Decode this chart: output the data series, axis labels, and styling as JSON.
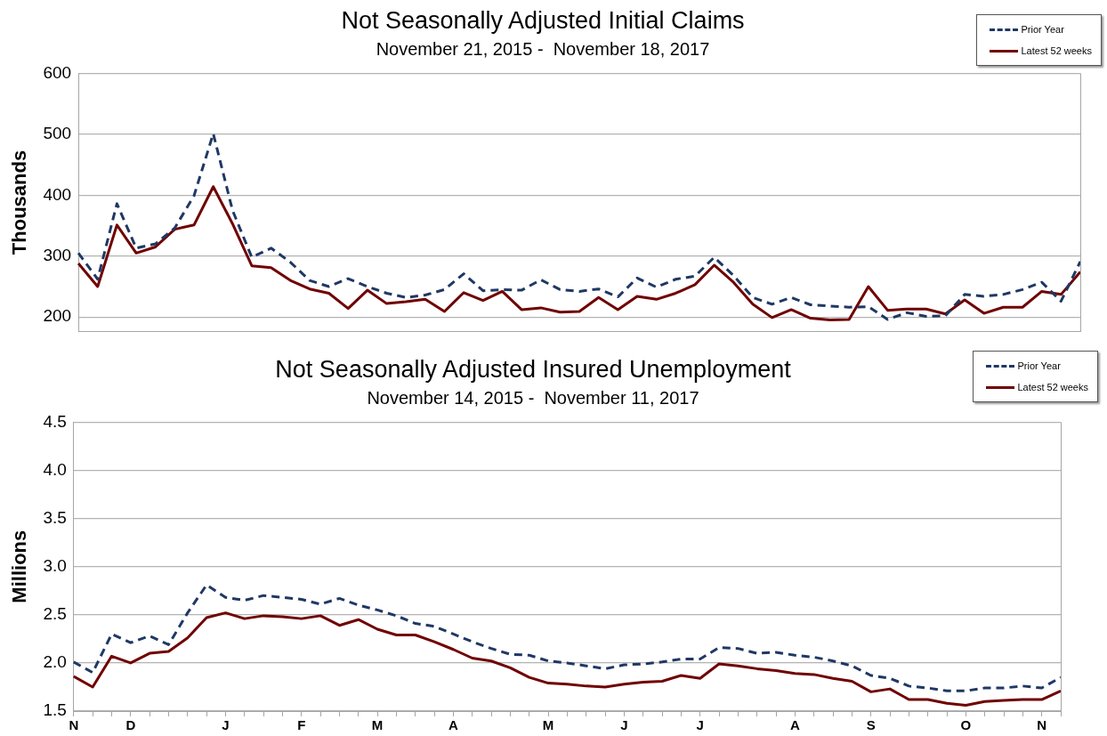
{
  "chart_data": [
    {
      "type": "line",
      "title": "Not Seasonally Adjusted Initial Claims",
      "subtitle": "November 21, 2015 -  November 18, 2017",
      "ylabel": "Thousands",
      "categories": [
        null,
        null,
        null,
        null,
        null,
        null,
        null,
        null,
        null,
        null,
        null,
        null,
        null,
        null,
        null,
        null,
        null,
        null,
        null,
        null,
        null,
        null,
        null,
        null,
        null,
        null,
        null,
        null,
        null,
        null,
        null,
        null,
        null,
        null,
        null,
        null,
        null,
        null,
        null,
        null,
        null,
        null,
        null,
        null,
        null,
        null,
        null,
        null,
        null,
        null,
        null,
        null,
        null
      ],
      "series": [
        {
          "name": "Prior Year",
          "color": "#1f3864",
          "line_style": "dashed",
          "values": [
            305,
            262,
            386,
            313,
            320,
            346,
            399,
            501,
            375,
            298,
            313,
            290,
            260,
            250,
            263,
            250,
            239,
            232,
            236,
            245,
            271,
            243,
            245,
            244,
            261,
            245,
            242,
            246,
            233,
            264,
            249,
            262,
            267,
            298,
            268,
            232,
            221,
            232,
            220,
            218,
            216,
            217,
            196,
            207,
            201,
            202,
            237,
            234,
            237,
            245,
            257,
            226,
            291
          ]
        },
        {
          "name": "Latest 52 weeks",
          "color": "#700000",
          "line_style": "solid",
          "values": [
            288,
            250,
            351,
            305,
            315,
            344,
            351,
            414,
            353,
            284,
            281,
            260,
            246,
            239,
            214,
            244,
            222,
            225,
            229,
            209,
            240,
            227,
            242,
            212,
            215,
            208,
            209,
            232,
            212,
            234,
            229,
            239,
            253,
            285,
            257,
            221,
            199,
            212,
            198,
            195,
            196,
            250,
            211,
            213,
            213,
            205,
            228,
            206,
            216,
            216,
            242,
            237,
            274
          ]
        }
      ],
      "ylim": [
        176,
        600
      ],
      "yticks": [
        200,
        300,
        400,
        500,
        600
      ],
      "grid": "y",
      "legend": "top right",
      "marker": "none",
      "tick_labels": "y"
    },
    {
      "type": "line",
      "title": "Not Seasonally Adjusted Insured Unemployment",
      "subtitle": "November 14, 2015 -  November 11, 2017",
      "ylabel": "Millions",
      "categories": [
        "N",
        null,
        null,
        "D",
        null,
        null,
        null,
        null,
        "J",
        null,
        null,
        null,
        "F",
        null,
        null,
        null,
        "M",
        null,
        null,
        null,
        "A",
        null,
        null,
        null,
        null,
        "M",
        null,
        null,
        null,
        "J",
        null,
        null,
        null,
        "J",
        null,
        null,
        null,
        null,
        "A",
        null,
        null,
        null,
        "S",
        null,
        null,
        null,
        null,
        "O",
        null,
        null,
        null,
        "N",
        null
      ],
      "series": [
        {
          "name": "Prior Year",
          "color": "#1f3864",
          "line_style": "dashed",
          "values": [
            2.01,
            1.9,
            2.3,
            2.21,
            2.28,
            2.19,
            2.52,
            2.81,
            2.68,
            2.65,
            2.7,
            2.68,
            2.66,
            2.61,
            2.67,
            2.6,
            2.55,
            2.49,
            2.41,
            2.38,
            2.3,
            2.22,
            2.15,
            2.09,
            2.08,
            2.02,
            2.0,
            1.97,
            1.94,
            1.98,
            1.99,
            2.01,
            2.04,
            2.04,
            2.16,
            2.15,
            2.1,
            2.11,
            2.08,
            2.06,
            2.02,
            1.97,
            1.87,
            1.84,
            1.76,
            1.74,
            1.71,
            1.71,
            1.74,
            1.74,
            1.76,
            1.74,
            1.85
          ]
        },
        {
          "name": "Latest 52 weeks",
          "color": "#700000",
          "line_style": "solid",
          "values": [
            1.86,
            1.75,
            2.07,
            2.0,
            2.1,
            2.12,
            2.26,
            2.47,
            2.52,
            2.46,
            2.49,
            2.48,
            2.46,
            2.49,
            2.39,
            2.45,
            2.35,
            2.29,
            2.29,
            2.22,
            2.14,
            2.05,
            2.02,
            1.95,
            1.85,
            1.79,
            1.78,
            1.76,
            1.75,
            1.78,
            1.8,
            1.81,
            1.87,
            1.84,
            1.99,
            1.97,
            1.94,
            1.92,
            1.89,
            1.88,
            1.84,
            1.81,
            1.7,
            1.73,
            1.62,
            1.62,
            1.58,
            1.56,
            1.6,
            1.61,
            1.62,
            1.62,
            1.71
          ]
        }
      ],
      "ylim": [
        1.5,
        4.5
      ],
      "yticks": [
        {
          "value": 1.5,
          "label": "1.5"
        },
        {
          "value": 2,
          "label": "2.0"
        },
        {
          "value": 2.5,
          "label": "2.5"
        },
        {
          "value": 3,
          "label": "3.0"
        },
        {
          "value": 3.5,
          "label": "3.5"
        },
        {
          "value": 4,
          "label": "4.0"
        },
        {
          "value": 4.5,
          "label": "4.5"
        }
      ],
      "grid": "y",
      "legend": "top right",
      "marker": "none"
    }
  ]
}
